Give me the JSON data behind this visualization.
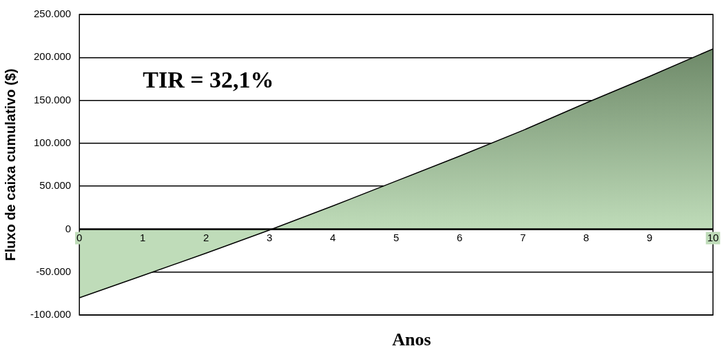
{
  "chart_data": {
    "type": "area",
    "ylabel": "Fluxo de caixa cumulativo ($)",
    "xlabel": "Anos",
    "annotations": [
      "TIR = 32,1%"
    ],
    "x": [
      0,
      1,
      2,
      3,
      4,
      5,
      6,
      7,
      8,
      9,
      10
    ],
    "series": [
      {
        "color": "#9cc994",
        "values": [
          -80000,
          -54000,
          -28000,
          -1000,
          27000,
          56000,
          85000,
          115000,
          147000,
          178000,
          210000
        ]
      }
    ],
    "xlim": [
      0,
      10
    ],
    "xticks": [
      0,
      1,
      2,
      3,
      4,
      5,
      6,
      7,
      8,
      9,
      10
    ],
    "ylim": [
      -100000,
      250000
    ],
    "yticks": [
      {
        "value": -100000,
        "label": "-100.000"
      },
      {
        "value": -50000,
        "label": "-50.000"
      },
      0,
      {
        "value": 50000,
        "label": "50.000"
      },
      {
        "value": 100000,
        "label": "100.000"
      },
      {
        "value": 150000,
        "label": "150.000"
      },
      {
        "value": 200000,
        "label": "200.000"
      },
      {
        "value": 250000,
        "label": "250.000"
      }
    ],
    "grid": "y",
    "legend": false
  }
}
